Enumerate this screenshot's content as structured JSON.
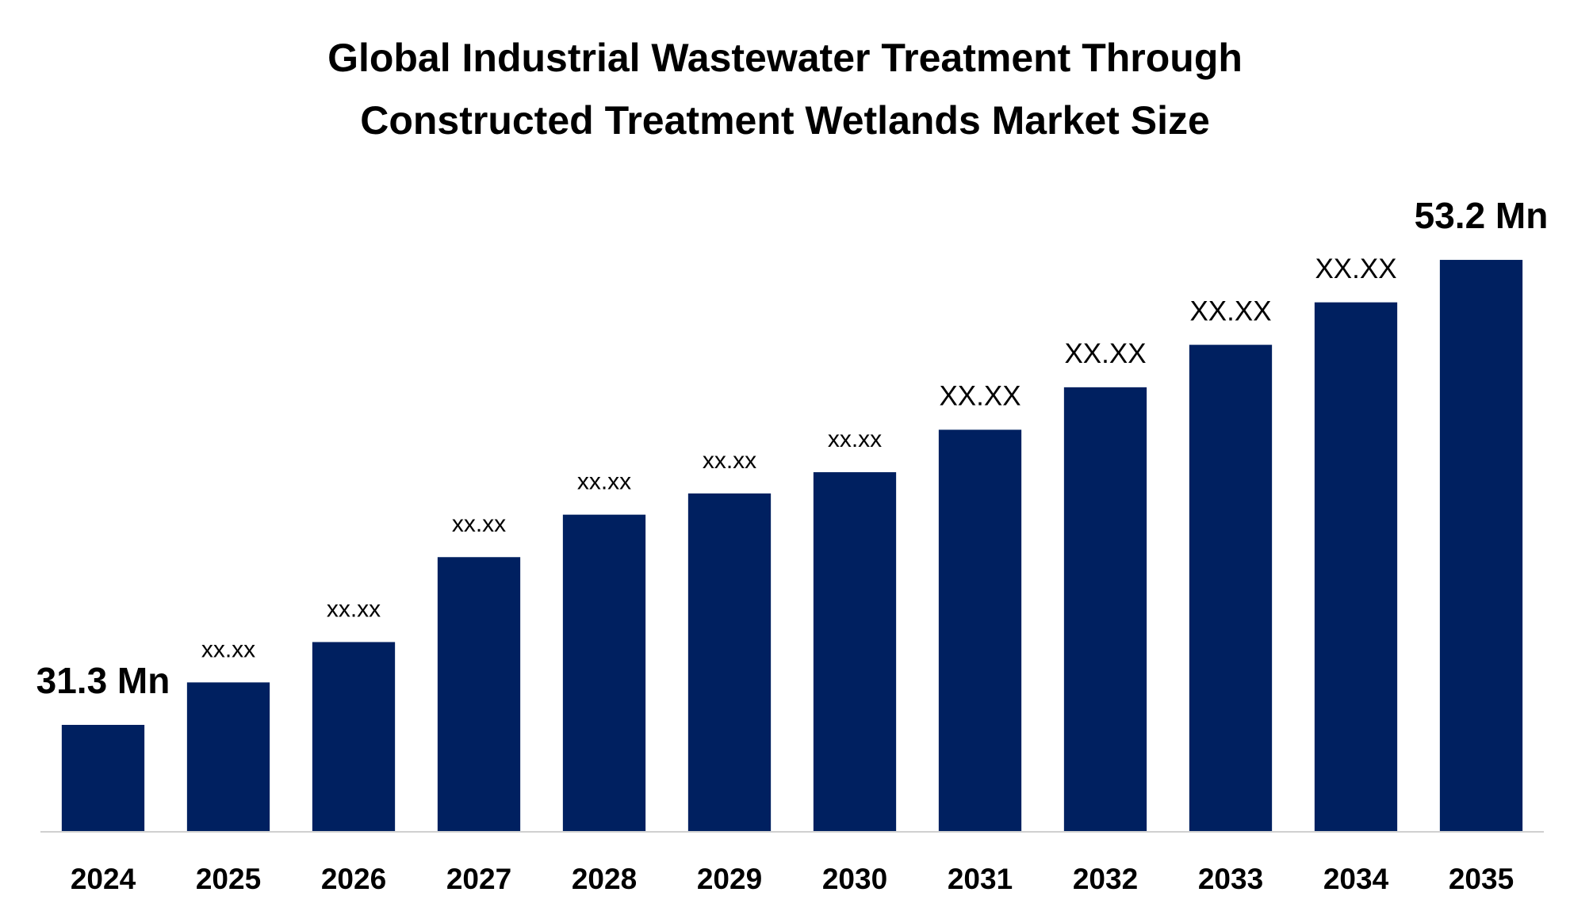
{
  "chart_data": {
    "type": "bar",
    "title": [
      "Global Industrial Wastewater Treatment Through",
      "Constructed Treatment Wetlands Market Size"
    ],
    "categories": [
      "2024",
      "2025",
      "2026",
      "2027",
      "2028",
      "2029",
      "2030",
      "2031",
      "2032",
      "2033",
      "2034",
      "2035"
    ],
    "values": [
      31.3,
      33.3,
      35.2,
      39.2,
      41.2,
      42.2,
      43.2,
      45.2,
      47.2,
      49.2,
      51.2,
      53.2
    ],
    "value_labels": [
      "31.3 Mn",
      "xx.xx",
      "xx.xx",
      "xx.xx",
      "xx.xx",
      "xx.xx",
      "xx.xx",
      "XX.XX",
      "XX.XX",
      "XX.XX",
      "XX.XX",
      "53.2 Mn"
    ],
    "color": "#002060",
    "ylim": [
      26.3,
      56
    ]
  }
}
